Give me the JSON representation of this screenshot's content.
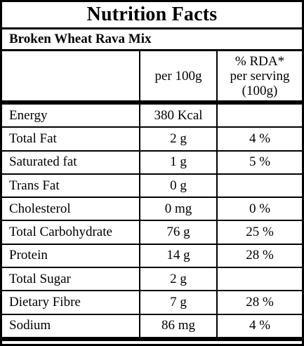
{
  "title": "Nutrition Facts",
  "product": "Broken Wheat Rava Mix",
  "headers": {
    "nutrient": "",
    "per100g": "per 100g",
    "rda_line1": "% RDA*",
    "rda_line2": "per serving",
    "rda_line3": "(100g)"
  },
  "rows": [
    {
      "name": "Energy",
      "value": "380 Kcal",
      "rda": ""
    },
    {
      "name": "Total Fat",
      "value": "2 g",
      "rda": "4 %"
    },
    {
      "name": "Saturated fat",
      "value": "1 g",
      "rda": "5 %"
    },
    {
      "name": "Trans Fat",
      "value": "0 g",
      "rda": ""
    },
    {
      "name": "Cholesterol",
      "value": "0 mg",
      "rda": "0 %"
    },
    {
      "name": "Total Carbohydrate",
      "value": "76 g",
      "rda": "25 %"
    },
    {
      "name": "Protein",
      "value": "14 g",
      "rda": "28 %"
    },
    {
      "name": "Total Sugar",
      "value": "2 g",
      "rda": ""
    },
    {
      "name": "Dietary Fibre",
      "value": "7 g",
      "rda": "28 %"
    },
    {
      "name": "Sodium",
      "value": "86 mg",
      "rda": "4 %"
    }
  ]
}
